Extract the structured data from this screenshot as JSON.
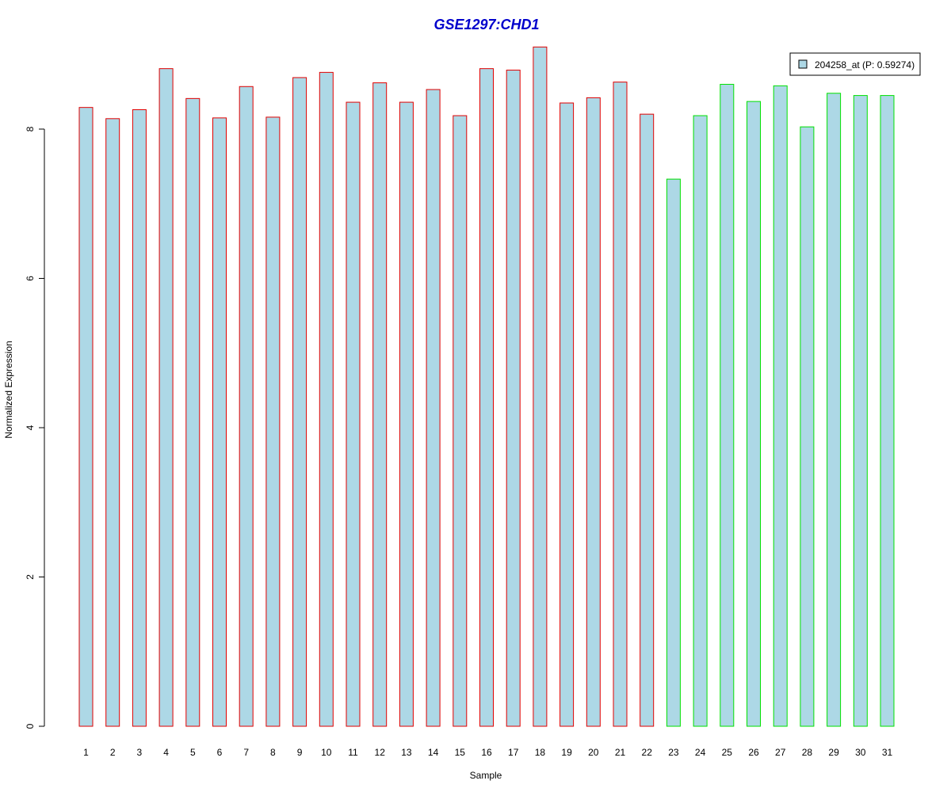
{
  "chart_data": {
    "type": "bar",
    "title": "GSE1297:CHD1",
    "xlabel": "Sample",
    "ylabel": "Normalized Expression",
    "ylim": [
      0,
      9.1
    ],
    "yticks": [
      0,
      2,
      4,
      6,
      8
    ],
    "categories": [
      "1",
      "2",
      "3",
      "4",
      "5",
      "6",
      "7",
      "8",
      "9",
      "10",
      "11",
      "12",
      "13",
      "14",
      "15",
      "16",
      "17",
      "18",
      "19",
      "20",
      "21",
      "22",
      "23",
      "24",
      "25",
      "26",
      "27",
      "28",
      "29",
      "30",
      "31"
    ],
    "values": [
      8.29,
      8.14,
      8.26,
      8.81,
      8.41,
      8.15,
      8.57,
      8.16,
      8.69,
      8.76,
      8.36,
      8.62,
      8.36,
      8.53,
      8.18,
      8.81,
      8.79,
      9.1,
      8.35,
      8.42,
      8.63,
      8.2,
      7.33,
      8.18,
      8.6,
      8.37,
      8.58,
      8.03,
      8.48,
      8.45,
      8.45
    ],
    "groups": [
      "red",
      "red",
      "red",
      "red",
      "red",
      "red",
      "red",
      "red",
      "red",
      "red",
      "red",
      "red",
      "red",
      "red",
      "red",
      "red",
      "red",
      "red",
      "red",
      "red",
      "red",
      "red",
      "green",
      "green",
      "green",
      "green",
      "green",
      "green",
      "green",
      "green",
      "green"
    ],
    "grid": false,
    "legend": {
      "placement": "top-right",
      "entries": [
        {
          "label": "204258_at (P: 0.59274)"
        }
      ]
    }
  },
  "colors": {
    "bar_fill": "#add8e6",
    "red_border": "#e00000",
    "green_border": "#00e000",
    "title": "#0000cc",
    "axis": "#000000"
  }
}
